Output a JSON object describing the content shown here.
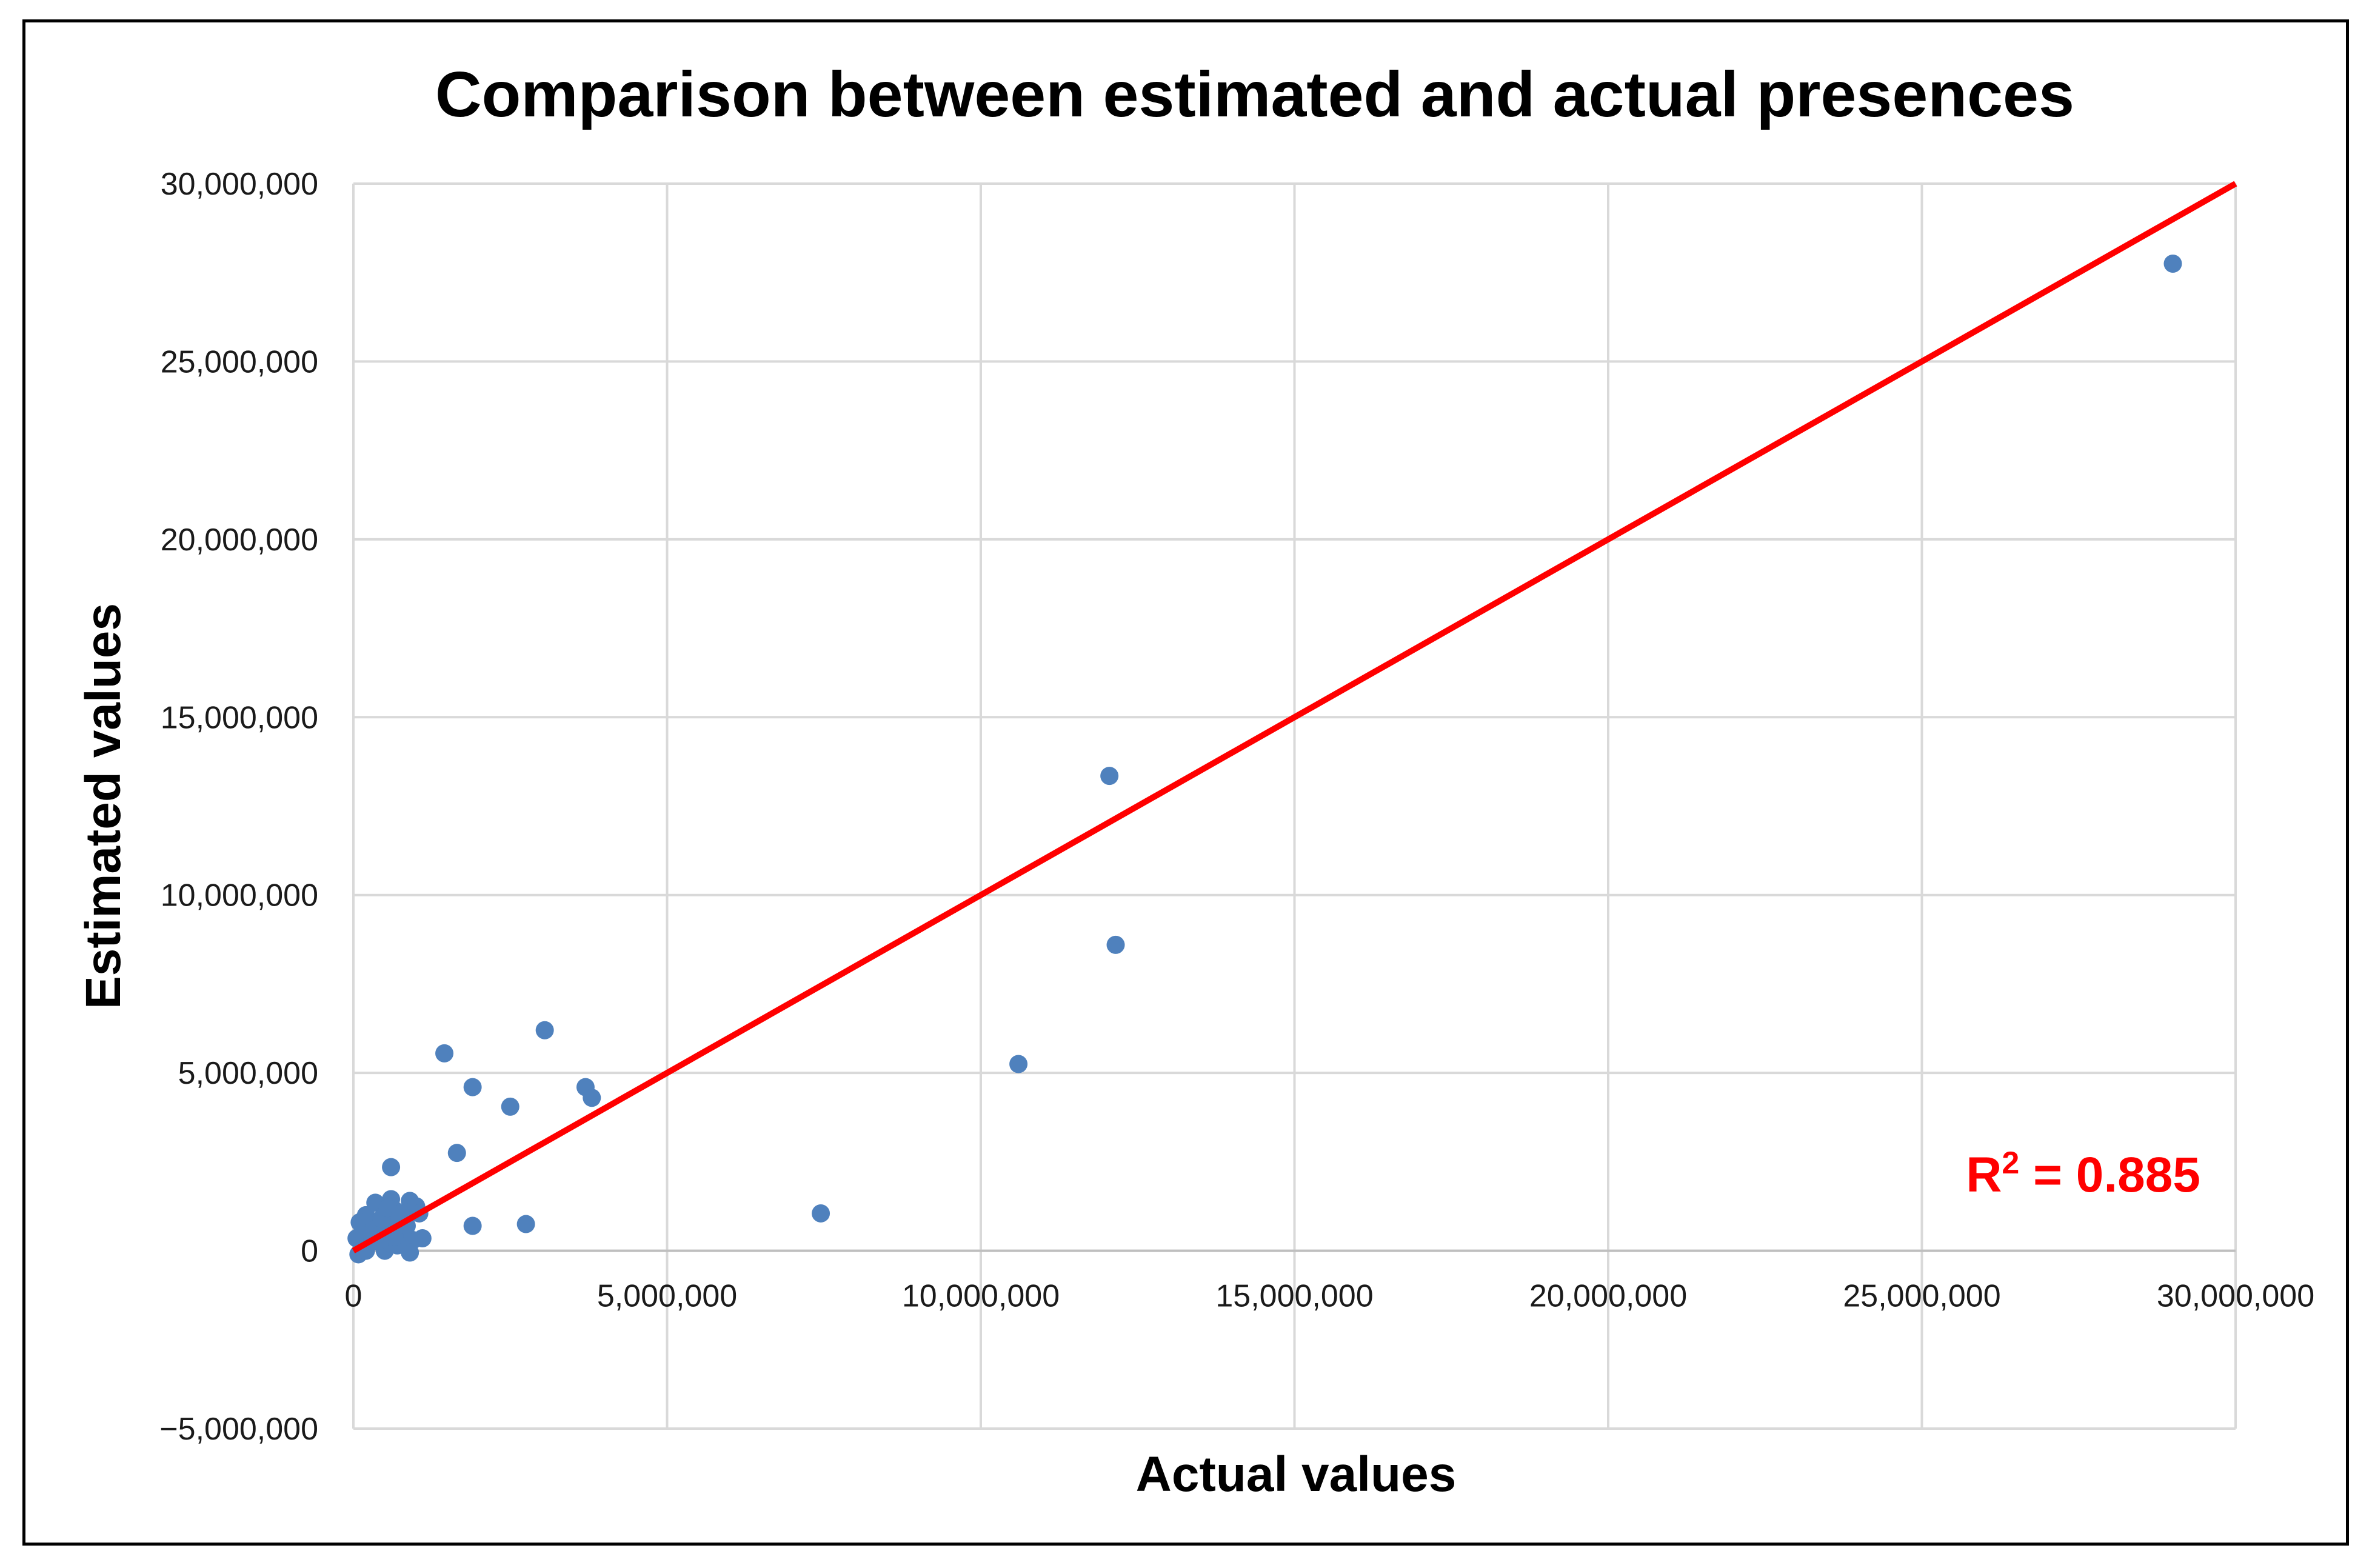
{
  "chart_data": {
    "type": "scatter",
    "title": "Comparison between estimated and actual presences",
    "xlabel": "Actual values",
    "ylabel": "Estimated values",
    "xlim": [
      0,
      30000000
    ],
    "ylim": [
      -5000000,
      30000000
    ],
    "x_ticks": [
      0,
      5000000,
      10000000,
      15000000,
      20000000,
      25000000,
      30000000
    ],
    "x_tick_labels": [
      "0",
      "5,000,000",
      "10,000,000",
      "15,000,000",
      "20,000,000",
      "25,000,000",
      "30,000,000"
    ],
    "y_ticks": [
      -5000000,
      0,
      5000000,
      10000000,
      15000000,
      20000000,
      25000000,
      30000000
    ],
    "y_tick_labels": [
      "−5,000,000",
      "0",
      "5,000,000",
      "10,000,000",
      "15,000,000",
      "20,000,000",
      "25,000,000",
      "30,000,000"
    ],
    "grid": true,
    "series": [
      {
        "name": "Presences",
        "color": "#4f81bd",
        "points": [
          [
            29000000,
            27750000
          ],
          [
            12050000,
            13350000
          ],
          [
            12150000,
            8600000
          ],
          [
            10600000,
            5250000
          ],
          [
            7450000,
            1050000
          ],
          [
            3050000,
            6200000
          ],
          [
            3700000,
            4600000
          ],
          [
            3800000,
            4300000
          ],
          [
            2500000,
            4050000
          ],
          [
            1450000,
            5550000
          ],
          [
            1900000,
            4600000
          ],
          [
            1650000,
            2750000
          ],
          [
            1900000,
            700000
          ],
          [
            2750000,
            750000
          ],
          [
            600000,
            2350000
          ],
          [
            600000,
            1450000
          ],
          [
            900000,
            1400000
          ],
          [
            1000000,
            1250000
          ],
          [
            1050000,
            1050000
          ],
          [
            350000,
            1350000
          ],
          [
            500000,
            1000000
          ],
          [
            650000,
            1150000
          ],
          [
            800000,
            1000000
          ],
          [
            1100000,
            350000
          ],
          [
            950000,
            300000
          ],
          [
            900000,
            -50000
          ],
          [
            700000,
            800000
          ],
          [
            750000,
            500000
          ],
          [
            550000,
            600000
          ],
          [
            450000,
            400000
          ],
          [
            300000,
            800000
          ],
          [
            200000,
            1000000
          ],
          [
            100000,
            800000
          ],
          [
            50000,
            350000
          ],
          [
            150000,
            200000
          ],
          [
            250000,
            500000
          ],
          [
            400000,
            250000
          ],
          [
            500000,
            0
          ],
          [
            600000,
            200000
          ],
          [
            700000,
            150000
          ],
          [
            80000,
            -100000
          ],
          [
            200000,
            0
          ],
          [
            350000,
            600000
          ],
          [
            650000,
            400000
          ],
          [
            850000,
            700000
          ],
          [
            120000,
            450000
          ],
          [
            450000,
            900000
          ],
          [
            550000,
            1200000
          ],
          [
            300000,
            300000
          ],
          [
            750000,
            1050000
          ]
        ]
      }
    ],
    "trendline": {
      "x": [
        0,
        30000000
      ],
      "y": [
        0,
        30000000
      ],
      "color": "#ff0000"
    },
    "annotations": [
      {
        "text": "R² = 0.885",
        "prefix": "R",
        "superscript": "2",
        "suffix": " = 0.885",
        "color": "#ff0000",
        "position": "bottom-right"
      }
    ]
  }
}
